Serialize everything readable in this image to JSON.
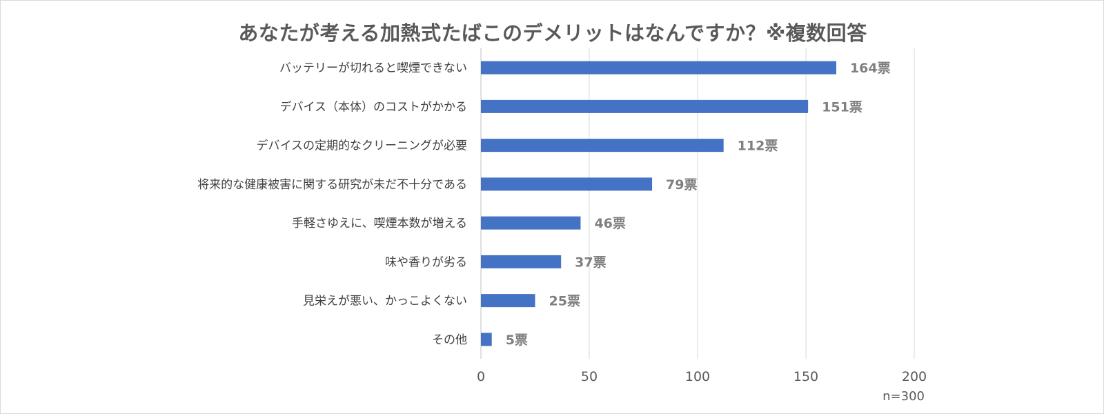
{
  "chart_data": {
    "type": "bar",
    "orientation": "horizontal",
    "title": "あなたが考える加熱式たばこのデメリットはなんですか？※複数回答",
    "categories": [
      "バッテリーが切れると喫煙できない",
      "デバイス（本体）のコストがかかる",
      "デバイスの定期的なクリーニングが必要",
      "将来的な健康被害に関する研究が未だ不十分である",
      "手軽さゆえに、喫煙本数が増える",
      "味や香りが劣る",
      "見栄えが悪い、かっこよくない",
      "その他"
    ],
    "values": [
      164,
      151,
      112,
      79,
      46,
      37,
      25,
      5
    ],
    "value_labels": [
      "164票",
      "151票",
      "112票",
      "79票",
      "46票",
      "37票",
      "25票",
      "5票"
    ],
    "x_ticks": [
      "0",
      "50",
      "100",
      "150",
      "200"
    ],
    "xlim": [
      0,
      200
    ],
    "grid": true,
    "legend": "none",
    "bar_color": "#4472c4",
    "note": "n=300"
  }
}
